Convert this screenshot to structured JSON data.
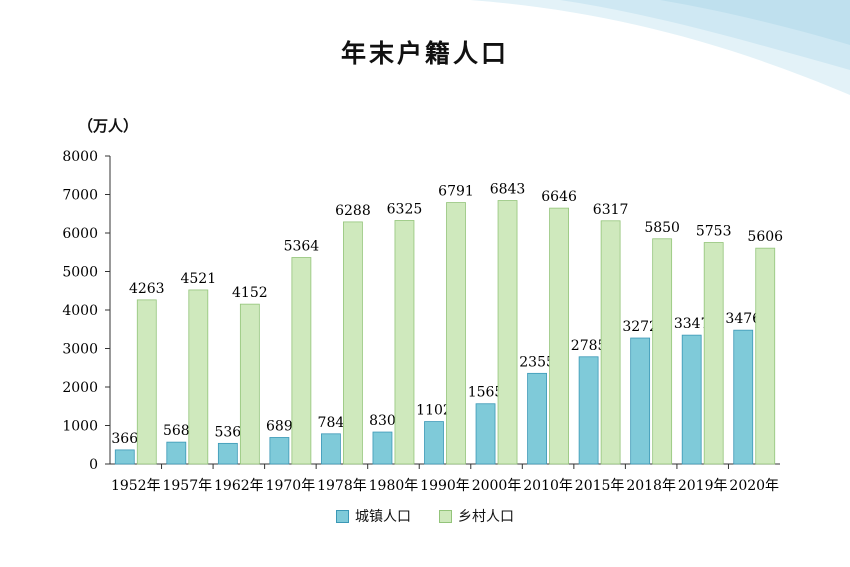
{
  "colors": {
    "urban_fill": "#7fcad9",
    "urban_edge": "#3b98b6",
    "rural_fill": "#cfe9bd",
    "rural_edge": "#93c47a",
    "deco_wave": "#cde8f3"
  },
  "chart_data": {
    "type": "bar",
    "title": "年末户籍人口",
    "unit_label": "（万人）",
    "ylim": [
      0,
      8000
    ],
    "yticks": [
      0,
      1000,
      2000,
      3000,
      4000,
      5000,
      6000,
      7000,
      8000
    ],
    "categories": [
      "1952年",
      "1957年",
      "1962年",
      "1970年",
      "1978年",
      "1980年",
      "1990年",
      "2000年",
      "2010年",
      "2015年",
      "2018年",
      "2019年",
      "2020年"
    ],
    "series": [
      {
        "name": "城镇人口",
        "values": [
          366,
          568,
          536,
          689,
          784,
          830,
          1102,
          1565,
          2355,
          2785,
          3272,
          3347,
          3476
        ]
      },
      {
        "name": "乡村人口",
        "values": [
          4263,
          4521,
          4152,
          5364,
          6288,
          6325,
          6791,
          6843,
          6646,
          6317,
          5850,
          5753,
          5606
        ]
      }
    ],
    "grid": false,
    "legend_position": "bottom"
  }
}
